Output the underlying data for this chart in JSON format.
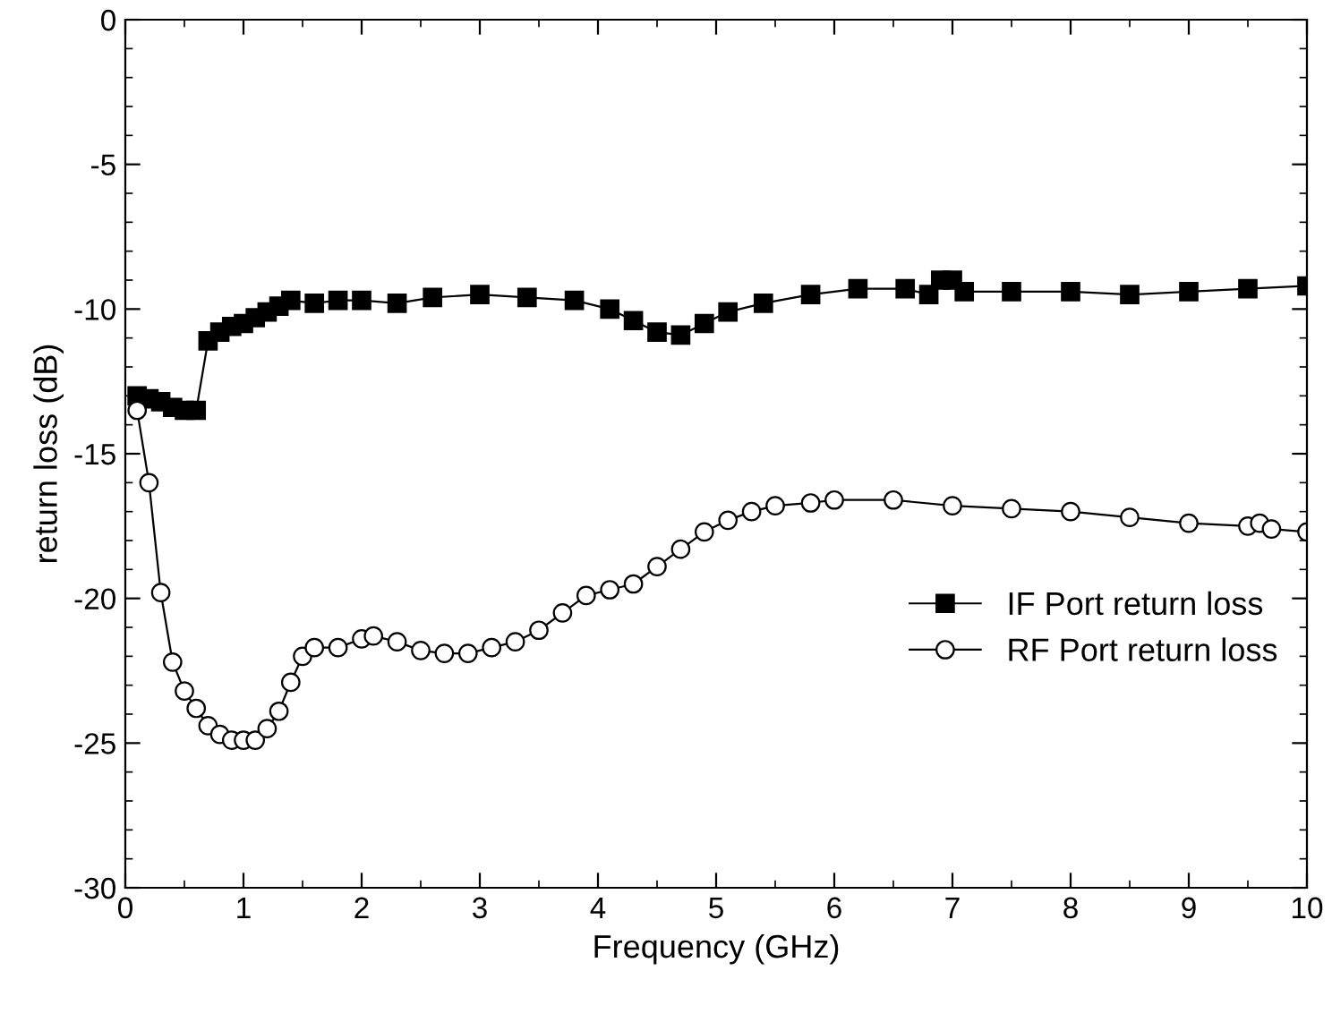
{
  "chart_data": {
    "type": "line",
    "xlabel": "Frequency (GHz)",
    "ylabel": "return loss (dB)",
    "xlim": [
      0,
      10
    ],
    "ylim": [
      -30,
      0
    ],
    "xticks": [
      0,
      1,
      2,
      3,
      4,
      5,
      6,
      7,
      8,
      9,
      10
    ],
    "yticks": [
      -30,
      -25,
      -20,
      -15,
      -10,
      -5,
      0
    ],
    "grid": false,
    "legend": "bottom right",
    "line_style": "solid",
    "series": [
      {
        "name": "IF Port return loss",
        "color": "#000000",
        "marker": "square",
        "x": [
          0.1,
          0.2,
          0.3,
          0.4,
          0.5,
          0.6,
          0.7,
          0.8,
          0.9,
          1.0,
          1.1,
          1.2,
          1.3,
          1.4,
          1.6,
          1.8,
          2.0,
          2.3,
          2.6,
          3.0,
          3.4,
          3.8,
          4.1,
          4.3,
          4.5,
          4.7,
          4.9,
          5.1,
          5.4,
          5.8,
          6.2,
          6.6,
          6.8,
          6.9,
          7.0,
          7.1,
          7.5,
          8.0,
          8.5,
          9.0,
          9.5,
          10.0
        ],
        "values": [
          -13.0,
          -13.1,
          -13.2,
          -13.4,
          -13.5,
          -13.5,
          -11.1,
          -10.8,
          -10.6,
          -10.5,
          -10.3,
          -10.1,
          -9.9,
          -9.7,
          -9.8,
          -9.7,
          -9.7,
          -9.8,
          -9.6,
          -9.5,
          -9.6,
          -9.7,
          -10.0,
          -10.4,
          -10.8,
          -10.9,
          -10.5,
          -10.1,
          -9.8,
          -9.5,
          -9.3,
          -9.3,
          -9.5,
          -9.0,
          -9.0,
          -9.4,
          -9.4,
          -9.4,
          -9.5,
          -9.4,
          -9.3,
          -9.2
        ]
      },
      {
        "name": "RF Port return loss",
        "color": "#000000",
        "marker": "circle",
        "x": [
          0.1,
          0.2,
          0.3,
          0.4,
          0.5,
          0.6,
          0.7,
          0.8,
          0.9,
          1.0,
          1.1,
          1.2,
          1.3,
          1.4,
          1.5,
          1.6,
          1.8,
          2.0,
          2.1,
          2.3,
          2.5,
          2.7,
          2.9,
          3.1,
          3.3,
          3.5,
          3.7,
          3.9,
          4.1,
          4.3,
          4.5,
          4.7,
          4.9,
          5.1,
          5.3,
          5.5,
          5.8,
          6.0,
          6.5,
          7.0,
          7.5,
          8.0,
          8.5,
          9.0,
          9.5,
          9.6,
          9.7,
          10.0
        ],
        "values": [
          -13.5,
          -16.0,
          -19.8,
          -22.2,
          -23.2,
          -23.8,
          -24.4,
          -24.7,
          -24.9,
          -24.9,
          -24.9,
          -24.5,
          -23.9,
          -22.9,
          -22.0,
          -21.7,
          -21.7,
          -21.4,
          -21.3,
          -21.5,
          -21.8,
          -21.9,
          -21.9,
          -21.7,
          -21.5,
          -21.1,
          -20.5,
          -19.9,
          -19.7,
          -19.5,
          -18.9,
          -18.3,
          -17.7,
          -17.3,
          -17.0,
          -16.8,
          -16.7,
          -16.6,
          -16.6,
          -16.8,
          -16.9,
          -17.0,
          -17.2,
          -17.4,
          -17.5,
          -17.4,
          -17.6,
          -17.7
        ]
      }
    ]
  }
}
